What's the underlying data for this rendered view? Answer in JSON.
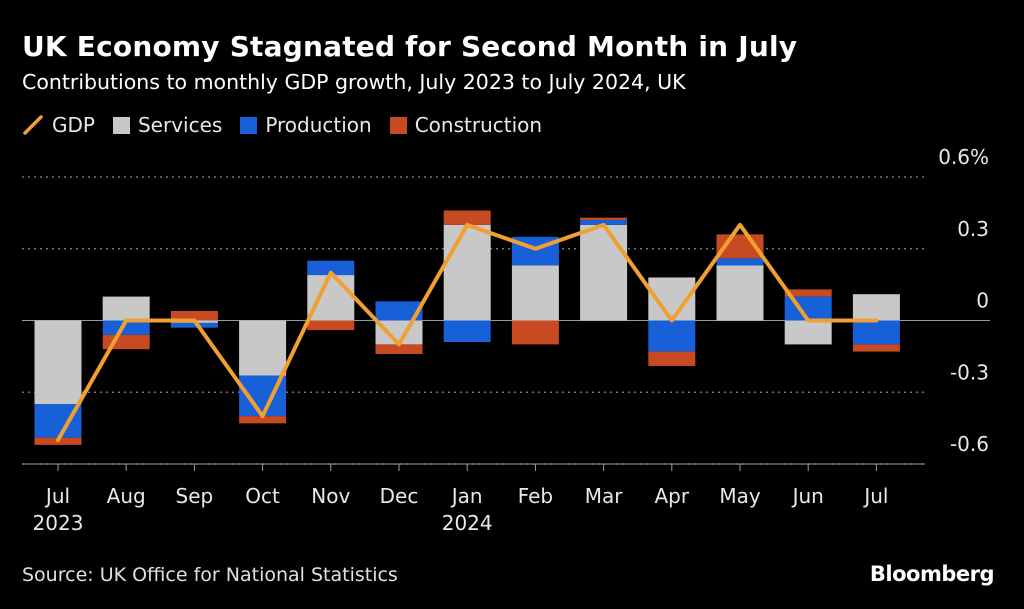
{
  "title": "UK Economy Stagnated for Second Month in July",
  "subtitle": "Contributions to monthly GDP growth, July 2023 to July 2024, UK",
  "legend": [
    {
      "label": "GDP",
      "kind": "line",
      "color": "#f0a030"
    },
    {
      "label": "Services",
      "kind": "box",
      "color": "#c8c8c8"
    },
    {
      "label": "Production",
      "kind": "box",
      "color": "#1760d8"
    },
    {
      "label": "Construction",
      "kind": "box",
      "color": "#c84a22"
    }
  ],
  "source": "Source: UK Office for National Statistics",
  "brand": "Bloomberg",
  "chart_data": {
    "type": "bar",
    "stacked": true,
    "categories": [
      "Jul",
      "Aug",
      "Sep",
      "Oct",
      "Nov",
      "Dec",
      "Jan",
      "Feb",
      "Mar",
      "Apr",
      "May",
      "Jun",
      "Jul"
    ],
    "category_sublabels": [
      "2023",
      "",
      "",
      "",
      "",
      "",
      "2024",
      "",
      "",
      "",
      "",
      "",
      ""
    ],
    "series": [
      {
        "name": "Services",
        "color": "#c8c8c8",
        "values": [
          -0.35,
          0.1,
          -0.01,
          -0.23,
          0.19,
          -0.1,
          0.4,
          0.23,
          0.4,
          0.18,
          0.23,
          -0.1,
          0.11
        ]
      },
      {
        "name": "Production",
        "color": "#1760d8",
        "values": [
          -0.14,
          -0.06,
          -0.02,
          -0.17,
          0.06,
          0.08,
          -0.09,
          0.12,
          0.02,
          -0.13,
          0.03,
          0.1,
          -0.1
        ]
      },
      {
        "name": "Construction",
        "color": "#c84a22",
        "values": [
          -0.03,
          -0.06,
          0.04,
          -0.03,
          -0.04,
          -0.04,
          0.06,
          -0.1,
          0.01,
          -0.06,
          0.1,
          0.03,
          -0.03
        ]
      }
    ],
    "line": {
      "name": "GDP",
      "color": "#f0a030",
      "values": [
        -0.5,
        0.0,
        0.0,
        -0.4,
        0.2,
        -0.1,
        0.4,
        0.3,
        0.4,
        0.0,
        0.4,
        0.0,
        0.0
      ]
    },
    "y_ticks": [
      {
        "value": 0.6,
        "label": "0.6%"
      },
      {
        "value": 0.3,
        "label": "0.3"
      },
      {
        "value": 0.0,
        "label": "0"
      },
      {
        "value": -0.3,
        "label": "-0.3"
      },
      {
        "value": -0.6,
        "label": "-0.6"
      }
    ],
    "ylim": [
      -0.6,
      0.6
    ],
    "grid": true,
    "legend_position": "top-left",
    "axis_side": "right"
  }
}
